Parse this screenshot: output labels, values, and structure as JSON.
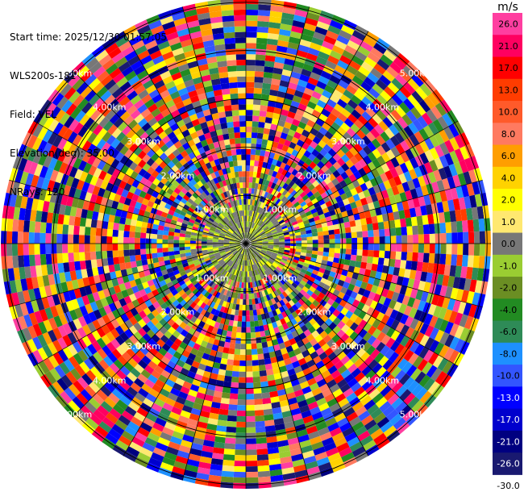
{
  "header": {
    "start_time": "Start time: 2025/12/30 01:57:05",
    "instrument": "WLS200s-181",
    "field": "Field: VEL",
    "elevation": "Elevation(deg): 35.00",
    "nrays": "NRays: 120"
  },
  "range_rings": [
    "1.00km",
    "2.00km",
    "3.00km",
    "4.00km",
    "5.00km"
  ],
  "nrays": 120,
  "colorbar": {
    "unit": "m/s",
    "levels": [
      {
        "label": "26.0",
        "color": "#ff3ea0"
      },
      {
        "label": "21.0",
        "color": "#ff0060"
      },
      {
        "label": "17.0",
        "color": "#ff0000"
      },
      {
        "label": "13.0",
        "color": "#ff3c00"
      },
      {
        "label": "10.0",
        "color": "#ff5a2a"
      },
      {
        "label": "8.0",
        "color": "#ff7a60"
      },
      {
        "label": "6.0",
        "color": "#ff9e00"
      },
      {
        "label": "4.0",
        "color": "#ffd200"
      },
      {
        "label": "2.0",
        "color": "#ffff00"
      },
      {
        "label": "1.0",
        "color": "#ffe870"
      },
      {
        "label": "0.0",
        "color": "#777777"
      },
      {
        "label": "-1.0",
        "color": "#9acd32"
      },
      {
        "label": "-2.0",
        "color": "#6b8e23"
      },
      {
        "label": "-4.0",
        "color": "#228b22"
      },
      {
        "label": "-6.0",
        "color": "#2e8b57"
      },
      {
        "label": "-8.0",
        "color": "#1e90ff"
      },
      {
        "label": "-10.0",
        "color": "#3355ff"
      },
      {
        "label": "-13.0",
        "color": "#0000ff"
      },
      {
        "label": "-17.0",
        "color": "#0000cd"
      },
      {
        "label": "-21.0",
        "color": "#000080"
      },
      {
        "label": "-26.0",
        "color": "#191970"
      },
      {
        "label": "-30.0",
        "color": "#ffffff"
      }
    ]
  }
}
